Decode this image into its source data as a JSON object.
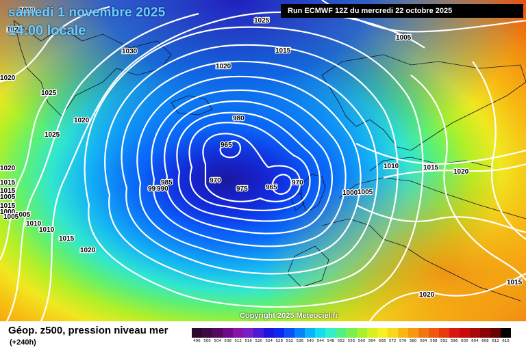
{
  "header": {
    "date_title": "samedi 1 novembre 2025",
    "time_title": "14:00 locale",
    "run_info": "Run ECMWF 12Z du mercredi 22 octobre 2025"
  },
  "footer": {
    "parameter_title": "Géop. z500, pression niveau mer",
    "forecast_step": "(+240h)",
    "copyright": "Copyright 2025 Meteociel.fr"
  },
  "isobar_labels": [
    "1030",
    "1025",
    "1025",
    "1030",
    "1015",
    "1005",
    "1020",
    "1020",
    "1025",
    "1020",
    "1025",
    "980",
    "965",
    "970",
    "975",
    "965",
    "970",
    "985",
    "995",
    "990",
    "1010",
    "1020",
    "1015",
    "1015",
    "1015",
    "1005",
    "1005",
    "1000",
    "1000",
    "1005",
    "1010",
    "1015",
    "1020",
    "1010",
    "1015",
    "1020",
    "1005",
    "1020",
    "1015"
  ],
  "legend": {
    "values": [
      "496",
      "500",
      "504",
      "508",
      "512",
      "516",
      "520",
      "524",
      "528",
      "532",
      "536",
      "540",
      "544",
      "548",
      "552",
      "556",
      "560",
      "564",
      "568",
      "572",
      "576",
      "580",
      "584",
      "588",
      "592",
      "596",
      "600",
      "604",
      "608",
      "612",
      "616"
    ],
    "colors": [
      "#2a0a2a",
      "#3e0a44",
      "#55085e",
      "#6e0a86",
      "#8a12a6",
      "#7a1ec8",
      "#4a1ad6",
      "#1a14dc",
      "#0a28ee",
      "#0a50f6",
      "#0a82fa",
      "#0ab4f8",
      "#14dcf0",
      "#30f0c8",
      "#50f088",
      "#78f050",
      "#a8f030",
      "#d8f020",
      "#f8f020",
      "#f8d818",
      "#f8b810",
      "#f89810",
      "#f07810",
      "#f05810",
      "#e83810",
      "#d81810",
      "#c80a0a",
      "#a80808",
      "#880404",
      "#680202",
      "#000000"
    ]
  }
}
